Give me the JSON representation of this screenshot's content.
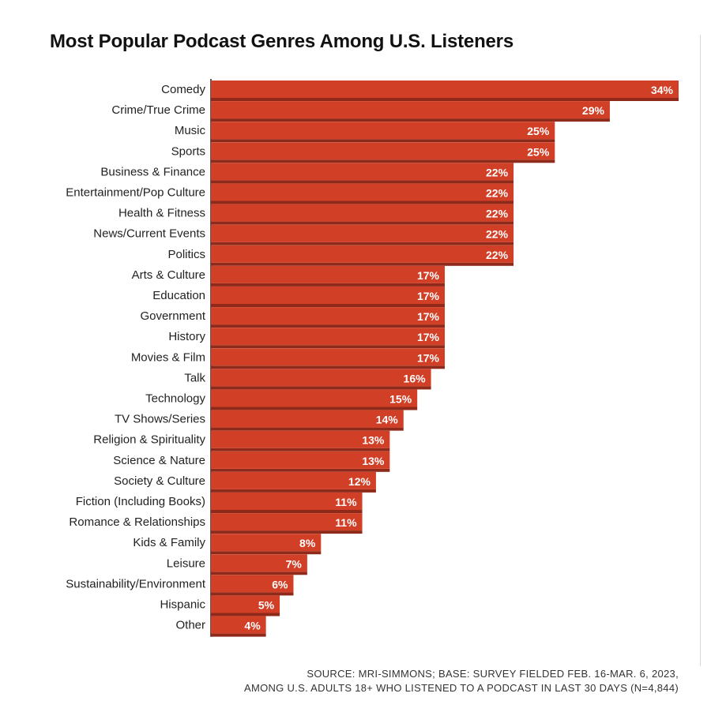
{
  "chart_data": {
    "type": "bar",
    "orientation": "horizontal",
    "title": "Most Popular Podcast Genres Among U.S. Listeners",
    "categories": [
      "Comedy",
      "Crime/True Crime",
      "Music",
      "Sports",
      "Business & Finance",
      "Entertainment/Pop Culture",
      "Health & Fitness",
      "News/Current Events",
      "Politics",
      "Arts & Culture",
      "Education",
      "Government",
      "History",
      "Movies & Film",
      "Talk",
      "Technology",
      "TV Shows/Series",
      "Religion & Spirituality",
      "Science & Nature",
      "Society & Culture",
      "Fiction (Including Books)",
      "Romance & Relationships",
      "Kids & Family",
      "Leisure",
      "Sustainability/Environment",
      "Hispanic",
      "Other"
    ],
    "values": [
      34,
      29,
      25,
      25,
      22,
      22,
      22,
      22,
      22,
      17,
      17,
      17,
      17,
      17,
      16,
      15,
      14,
      13,
      13,
      12,
      11,
      11,
      8,
      7,
      6,
      5,
      4
    ],
    "value_suffix": "%",
    "xlim": [
      0,
      34
    ],
    "bar_color": "#d23f27",
    "bar_shadow_color": "#8f2a1a",
    "grid": false,
    "legend": "none"
  },
  "source": {
    "line1": "SOURCE:  MRI-SIMMONS; BASE: SURVEY FIELDED FEB. 16-MAR. 6, 2023,",
    "line2": "AMONG U.S. ADULTS 18+ WHO LISTENED TO A PODCAST IN LAST 30 DAYS (N=4,844)"
  }
}
